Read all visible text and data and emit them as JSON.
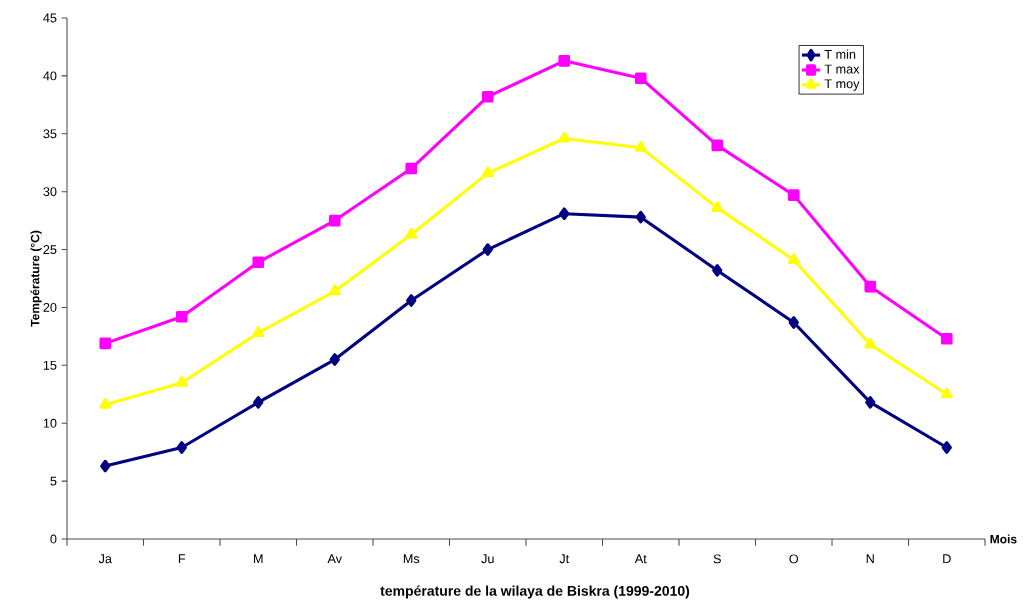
{
  "chart_data": {
    "type": "line",
    "title": "température de la wilaya de Biskra (1999-2010)",
    "xlabel": "Mois",
    "ylabel": "Température (°C)",
    "categories": [
      "Ja",
      "F",
      "M",
      "Av",
      "Ms",
      "Ju",
      "Jt",
      "At",
      "S",
      "O",
      "N",
      "D"
    ],
    "series": [
      {
        "name": "T min",
        "color": "#000080",
        "marker": "diamond",
        "values": [
          6.3,
          7.9,
          11.8,
          15.5,
          20.6,
          25.0,
          28.1,
          27.8,
          23.2,
          18.7,
          11.8,
          7.9
        ]
      },
      {
        "name": "T max",
        "color": "#ff00ff",
        "marker": "square",
        "values": [
          16.9,
          19.2,
          23.9,
          27.5,
          32.0,
          38.2,
          41.3,
          39.8,
          34.0,
          29.7,
          21.8,
          17.3
        ]
      },
      {
        "name": "T moy",
        "color": "#ffff00",
        "marker": "triangle",
        "values": [
          11.6,
          13.5,
          17.8,
          21.4,
          26.3,
          31.6,
          34.6,
          33.8,
          28.6,
          24.1,
          16.8,
          12.5
        ]
      }
    ],
    "ylim": [
      0,
      45
    ],
    "yticks": [
      0,
      5,
      10,
      15,
      20,
      25,
      30,
      35,
      40,
      45
    ],
    "grid": false,
    "legend": "top right",
    "line_style": "solid"
  }
}
